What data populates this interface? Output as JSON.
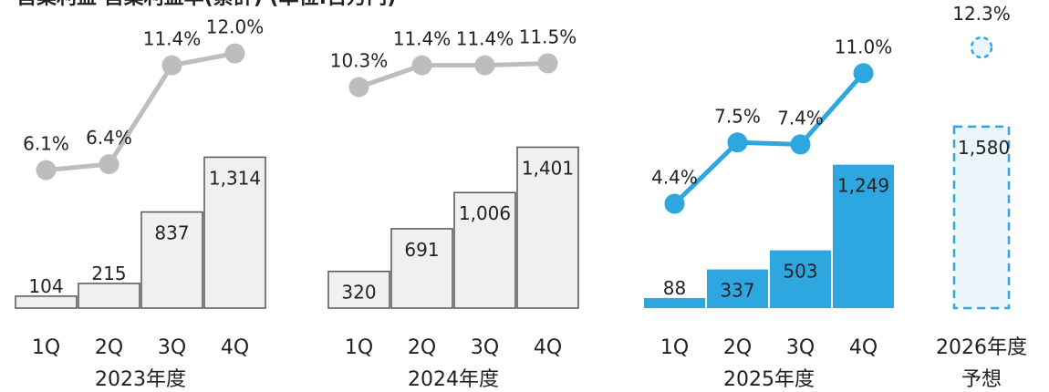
{
  "header_fragment": "営業利益 営業利益率(累計) (単位:百万円)",
  "colors": {
    "gray_fill": "#f0f0f0",
    "gray_stroke": "#555555",
    "gray_line": "#bdbdbd",
    "blue": "#2ea7e0",
    "forecast_fill": "#eaf5fc"
  },
  "chart_data": {
    "type": "bar",
    "ylim_bar": [
      0,
      1650
    ],
    "ylim_rate": [
      0,
      13
    ],
    "groups": [
      {
        "label": "2023年度",
        "categories": [
          "1Q",
          "2Q",
          "3Q",
          "4Q"
        ],
        "values": [
          104,
          215,
          837,
          1314
        ],
        "value_labels": [
          "104",
          "215",
          "837",
          "1,314"
        ],
        "rates": [
          6.1,
          6.4,
          11.4,
          12.0
        ],
        "rate_labels": [
          "6.1%",
          "6.4%",
          "11.4%",
          "12.0%"
        ],
        "style": "gray"
      },
      {
        "label": "2024年度",
        "categories": [
          "1Q",
          "2Q",
          "3Q",
          "4Q"
        ],
        "values": [
          320,
          691,
          1006,
          1401
        ],
        "value_labels": [
          "320",
          "691",
          "1,006",
          "1,401"
        ],
        "rates": [
          10.3,
          11.4,
          11.4,
          11.5
        ],
        "rate_labels": [
          "10.3%",
          "11.4%",
          "11.4%",
          "11.5%"
        ],
        "style": "gray"
      },
      {
        "label": "2025年度",
        "categories": [
          "1Q",
          "2Q",
          "3Q",
          "4Q"
        ],
        "values": [
          88,
          337,
          503,
          1249
        ],
        "value_labels": [
          "88",
          "337",
          "503",
          "1,249"
        ],
        "rates": [
          4.4,
          7.5,
          7.4,
          11.0
        ],
        "rate_labels": [
          "4.4%",
          "7.5%",
          "7.4%",
          "11.0%"
        ],
        "style": "blue"
      },
      {
        "label_lines": [
          "2026年度",
          "予想"
        ],
        "categories": [],
        "values": [
          1580
        ],
        "value_labels": [
          "1,580"
        ],
        "rates": [
          12.3
        ],
        "rate_labels": [
          "12.3%"
        ],
        "style": "forecast"
      }
    ]
  }
}
